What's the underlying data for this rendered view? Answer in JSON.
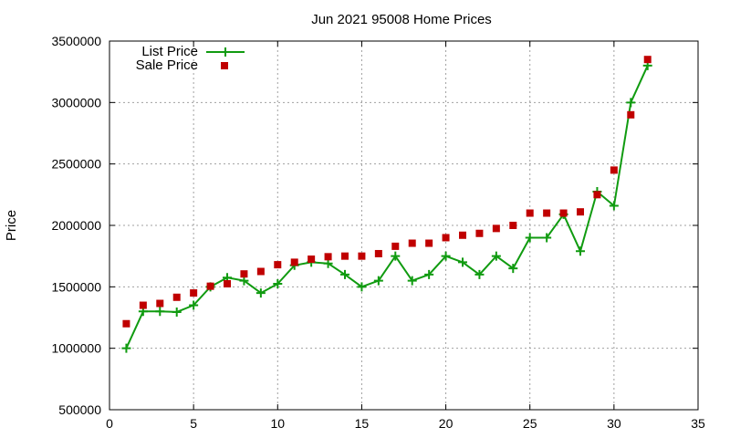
{
  "chart_data": {
    "type": "line",
    "title": "Jun 2021 95008 Home Prices",
    "xlabel": "",
    "ylabel": "Price",
    "xlim": [
      0,
      35
    ],
    "ylim": [
      500000,
      3500000
    ],
    "xticks": [
      0,
      5,
      10,
      15,
      20,
      25,
      30,
      35
    ],
    "yticks": [
      500000,
      1000000,
      1500000,
      2000000,
      2500000,
      3000000,
      3500000
    ],
    "grid": true,
    "legend_position": "top-left",
    "series": [
      {
        "name": "List Price",
        "style": "line-plus",
        "color": "#109b10",
        "x": [
          1,
          2,
          3,
          4,
          5,
          6,
          7,
          8,
          9,
          10,
          11,
          12,
          13,
          14,
          15,
          16,
          17,
          18,
          19,
          20,
          21,
          22,
          23,
          24,
          25,
          26,
          27,
          28,
          29,
          30,
          31,
          32
        ],
        "y": [
          1000000,
          1300000,
          1300000,
          1295000,
          1350000,
          1500000,
          1575000,
          1550000,
          1450000,
          1525000,
          1675000,
          1700000,
          1690000,
          1600000,
          1500000,
          1550000,
          1750000,
          1550000,
          1600000,
          1750000,
          1700000,
          1600000,
          1750000,
          1650000,
          1900000,
          1900000,
          2090000,
          1790000,
          2275000,
          2160000,
          3000000,
          3300000
        ]
      },
      {
        "name": "Sale Price",
        "style": "square-points",
        "color": "#c00000",
        "x": [
          1,
          2,
          3,
          4,
          5,
          6,
          7,
          8,
          9,
          10,
          11,
          12,
          13,
          14,
          15,
          16,
          17,
          18,
          19,
          20,
          21,
          22,
          23,
          24,
          25,
          26,
          27,
          28,
          29,
          30,
          31,
          32
        ],
        "y": [
          1200000,
          1350000,
          1365000,
          1415000,
          1450000,
          1505000,
          1525000,
          1605000,
          1625000,
          1680000,
          1700000,
          1725000,
          1745000,
          1750000,
          1750000,
          1770000,
          1830000,
          1855000,
          1855000,
          1900000,
          1920000,
          1935000,
          1975000,
          2000000,
          2100000,
          2100000,
          2100000,
          2110000,
          2250000,
          2450000,
          2900000,
          3350000
        ]
      }
    ]
  }
}
